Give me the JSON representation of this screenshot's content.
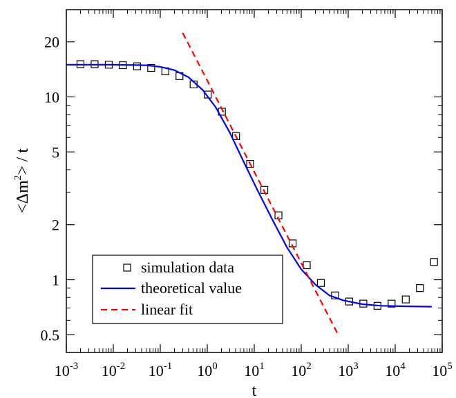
{
  "chart_data": {
    "type": "line",
    "xlabel": "t",
    "ylabel_base": "<Δm",
    "ylabel_sup": "2",
    "ylabel_tail": "> / t",
    "xscale": "log",
    "yscale": "log",
    "xlim": [
      0.001,
      100000
    ],
    "ylim": [
      0.4,
      30
    ],
    "x_ticks": [
      {
        "value": 0.001,
        "base": "10",
        "exp": "-3"
      },
      {
        "value": 0.01,
        "base": "10",
        "exp": "-2"
      },
      {
        "value": 0.1,
        "base": "10",
        "exp": "-1"
      },
      {
        "value": 1,
        "base": "10",
        "exp": "0"
      },
      {
        "value": 10,
        "base": "10",
        "exp": "1"
      },
      {
        "value": 100,
        "base": "10",
        "exp": "2"
      },
      {
        "value": 1000,
        "base": "10",
        "exp": "3"
      },
      {
        "value": 10000,
        "base": "10",
        "exp": "4"
      },
      {
        "value": 100000,
        "base": "10",
        "exp": "5"
      }
    ],
    "y_ticks": [
      {
        "value": 0.5,
        "label": "0.5"
      },
      {
        "value": 1,
        "label": "1"
      },
      {
        "value": 2,
        "label": "2"
      },
      {
        "value": 5,
        "label": "5"
      },
      {
        "value": 10,
        "label": "10"
      },
      {
        "value": 20,
        "label": "20"
      }
    ],
    "legend_position": "bottom-left",
    "series": [
      {
        "name": "simulation data",
        "kind": "markers",
        "color": "#000000",
        "x": [
          0.002,
          0.004,
          0.008,
          0.016,
          0.032,
          0.064,
          0.128,
          0.256,
          0.512,
          1.024,
          2.048,
          4.096,
          8.192,
          16.384,
          32.768,
          65.536,
          131.07,
          262.14,
          524.29,
          1048.6,
          2097.2,
          4194.3,
          8388.6,
          16777,
          33554,
          67109
        ],
        "y": [
          15.1,
          15.1,
          15.0,
          14.9,
          14.7,
          14.4,
          13.8,
          13.0,
          11.7,
          10.3,
          8.3,
          6.1,
          4.3,
          3.1,
          2.25,
          1.58,
          1.2,
          0.96,
          0.82,
          0.76,
          0.74,
          0.72,
          0.74,
          0.78,
          0.9,
          1.25
        ]
      },
      {
        "name": "theoretical value",
        "kind": "line",
        "color": "#0000ff",
        "x": [
          0.001,
          0.01,
          0.05,
          0.1,
          0.2,
          0.4,
          0.8,
          1.5,
          3,
          6,
          12,
          25,
          50,
          100,
          200,
          400,
          800,
          2000,
          5000,
          20000,
          60000
        ],
        "y": [
          15.0,
          15.0,
          14.9,
          14.6,
          14.0,
          12.8,
          10.9,
          8.8,
          6.4,
          4.4,
          3.05,
          2.1,
          1.5,
          1.14,
          0.94,
          0.82,
          0.77,
          0.735,
          0.72,
          0.715,
          0.712
        ]
      },
      {
        "name": "linear fit",
        "kind": "dashed-line",
        "color": "#ff0000",
        "x": [
          0.3,
          600
        ],
        "y": [
          22.4,
          0.505
        ]
      }
    ]
  }
}
